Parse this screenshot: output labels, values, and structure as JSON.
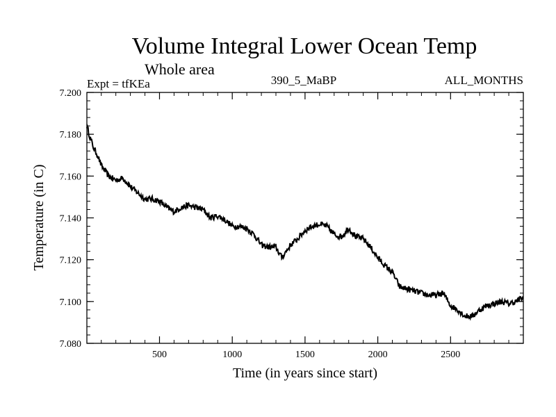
{
  "chart_data": {
    "type": "line",
    "title": "Volume Integral Lower Ocean Temp",
    "subtitle": "Whole area",
    "annotations": {
      "expt": "Expt = tfKEa",
      "run": "390_5_MaBP",
      "months": "ALL_MONTHS"
    },
    "xlabel": "Time (in years since start)",
    "ylabel": "Temperature (in C)",
    "xlim": [
      1,
      3000
    ],
    "ylim": [
      7.08,
      7.2
    ],
    "xticks": [
      500,
      1000,
      1500,
      2000,
      2500
    ],
    "xtick_labels": [
      "500",
      "1000",
      "1500",
      "2000",
      "2500"
    ],
    "yticks": [
      7.08,
      7.1,
      7.12,
      7.14,
      7.16,
      7.18,
      7.2
    ],
    "ytick_labels": [
      "7.080",
      "7.100",
      "7.120",
      "7.140",
      "7.160",
      "7.180",
      "7.200"
    ],
    "grid": false,
    "legend": "none",
    "line_color": "#000000",
    "series": [
      {
        "x": [
          1,
          25,
          50,
          75,
          100,
          150,
          200,
          250,
          300,
          350,
          400,
          450,
          500,
          550,
          600,
          650,
          700,
          750,
          800,
          850,
          900,
          950,
          1000,
          1050,
          1100,
          1150,
          1200,
          1250,
          1300,
          1340,
          1400,
          1450,
          1500,
          1550,
          1600,
          1650,
          1700,
          1750,
          1800,
          1850,
          1900,
          1950,
          2000,
          2050,
          2100,
          2150,
          2200,
          2250,
          2300,
          2350,
          2400,
          2450,
          2500,
          2550,
          2600,
          2650,
          2700,
          2750,
          2800,
          2850,
          2900,
          2950,
          3000
        ],
        "y": [
          7.184,
          7.178,
          7.173,
          7.17,
          7.165,
          7.16,
          7.158,
          7.159,
          7.155,
          7.152,
          7.149,
          7.149,
          7.148,
          7.145,
          7.143,
          7.145,
          7.146,
          7.145,
          7.144,
          7.14,
          7.141,
          7.139,
          7.136,
          7.136,
          7.135,
          7.132,
          7.127,
          7.126,
          7.126,
          7.121,
          7.127,
          7.13,
          7.134,
          7.136,
          7.137,
          7.136,
          7.132,
          7.131,
          7.135,
          7.131,
          7.13,
          7.126,
          7.121,
          7.117,
          7.114,
          7.107,
          7.106,
          7.105,
          7.104,
          7.103,
          7.103,
          7.104,
          7.098,
          7.096,
          7.093,
          7.093,
          7.096,
          7.098,
          7.099,
          7.1,
          7.099,
          7.1,
          7.102
        ]
      }
    ]
  }
}
